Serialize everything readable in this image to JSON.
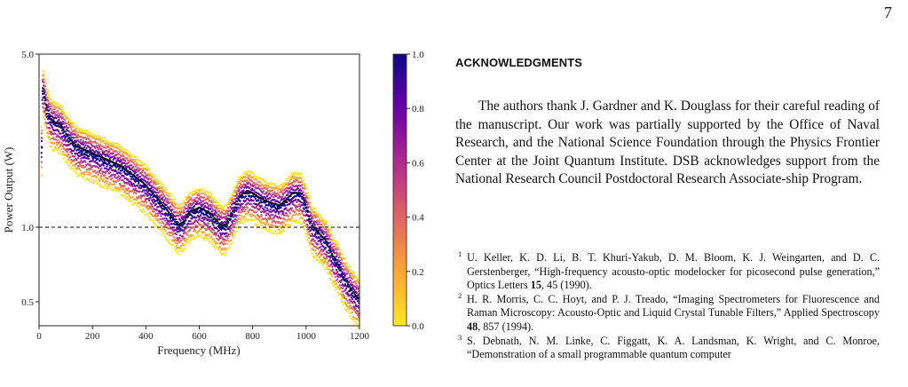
{
  "page_number": "7",
  "chart_data": {
    "type": "scatter",
    "xlabel": "Frequency (MHz)",
    "ylabel": "Power Output (W)",
    "xlim": [
      0,
      1200
    ],
    "ylim": [
      0.4,
      5.0
    ],
    "yscale": "log",
    "x_ticks": [
      "0",
      "200",
      "400",
      "600",
      "800",
      "1000",
      "1200"
    ],
    "y_ticks": [
      "0.5",
      "1.0",
      "5.0"
    ],
    "reference_line": {
      "y": 1.0,
      "style": "dashed"
    },
    "colorbar": {
      "ticks": [
        "0.0",
        "0.2",
        "0.4",
        "0.6",
        "0.8",
        "1.0"
      ],
      "colors": [
        "#fde725",
        "#fca636",
        "#e16462",
        "#b12a90",
        "#6a00a8",
        "#0d0887"
      ]
    },
    "mean_curve": {
      "x": [
        10,
        12,
        15,
        20,
        25,
        30,
        40,
        50,
        60,
        80,
        100,
        120,
        150,
        180,
        200,
        250,
        300,
        350,
        400,
        450,
        480,
        500,
        520,
        540,
        560,
        600,
        640,
        680,
        700,
        720,
        750,
        780,
        800,
        820,
        850,
        900,
        920,
        950,
        980,
        1000,
        1020,
        1040,
        1060,
        1080,
        1100,
        1120,
        1140,
        1160,
        1180,
        1200
      ],
      "y": [
        2.1,
        3.2,
        3.65,
        3.4,
        3.15,
        2.95,
        2.75,
        2.65,
        2.6,
        2.55,
        2.35,
        2.2,
        2.05,
        2.0,
        1.95,
        1.85,
        1.75,
        1.6,
        1.45,
        1.25,
        1.15,
        1.08,
        1.0,
        1.03,
        1.12,
        1.18,
        1.12,
        1.0,
        1.0,
        1.1,
        1.3,
        1.38,
        1.35,
        1.3,
        1.25,
        1.2,
        1.25,
        1.35,
        1.35,
        1.2,
        1.0,
        0.95,
        0.9,
        0.85,
        0.75,
        0.7,
        0.62,
        0.57,
        0.53,
        0.5
      ]
    }
  },
  "acknowledgments": {
    "heading": "ACKNOWLEDGMENTS",
    "paragraph": "The authors thank J. Gardner and K. Douglass for their careful reading of the manuscript. Our work was partially supported by the Office of Naval Research, and the National Science Foundation through the Physics Frontier Center at the Joint Quantum Institute. DSB acknowledges support from the National Research Council Postdoctoral Research Associate-ship Program."
  },
  "references": [
    {
      "num": "1",
      "before": "U. Keller, K. D. Li, B. T. Khuri-Yakub, D. M. Bloom, K. J. Weingarten, and D. C. Gerstenberger, “High-frequency acousto-optic modelocker for picosecond pulse generation,” Optics Letters ",
      "volume": "15",
      "after": ", 45 (1990)."
    },
    {
      "num": "2",
      "before": "H. R. Morris, C. C. Hoyt, and P. J. Treado, “Imaging Spectrometers for Fluorescence and Raman Microscopy: Acousto-Optic and Liquid Crystal Tunable Filters,” Applied Spectroscopy ",
      "volume": "48",
      "after": ", 857 (1994)."
    },
    {
      "num": "3",
      "before": "S. Debnath, N. M. Linke, C. Figgatt, K. A. Landsman, K. Wright, and C. Monroe, “Demonstration of a small programmable quantum computer",
      "volume": "",
      "after": ""
    }
  ]
}
